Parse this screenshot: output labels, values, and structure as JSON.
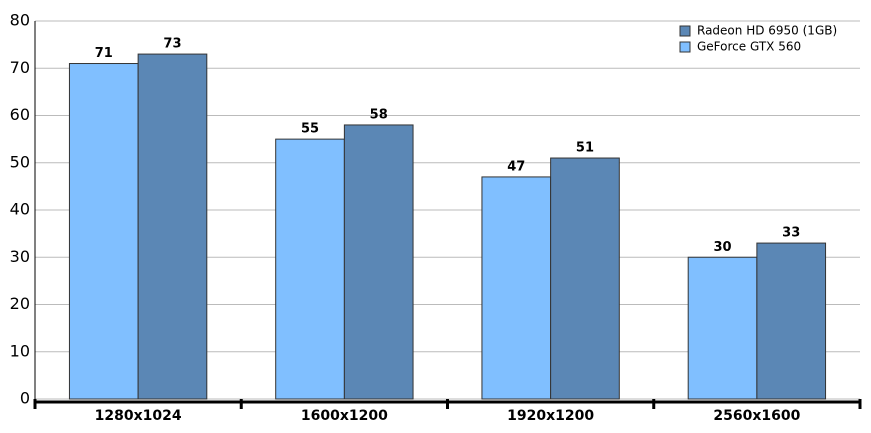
{
  "chart_data": {
    "type": "bar",
    "categories": [
      "1280x1024",
      "1600x1200",
      "1920x1200",
      "2560x1600"
    ],
    "series": [
      {
        "name": "GeForce GTX 560",
        "color": "#80bfff",
        "values": [
          71,
          55,
          47,
          30
        ]
      },
      {
        "name": "Radeon HD 6950 (1GB)",
        "color": "#5b87b5",
        "values": [
          73,
          58,
          51,
          33
        ]
      }
    ],
    "ylim": [
      0,
      80
    ],
    "yticks": [
      0,
      10,
      20,
      30,
      40,
      50,
      60,
      70,
      80
    ],
    "grid": true,
    "legend": "top-right",
    "legend_reversed": true
  }
}
